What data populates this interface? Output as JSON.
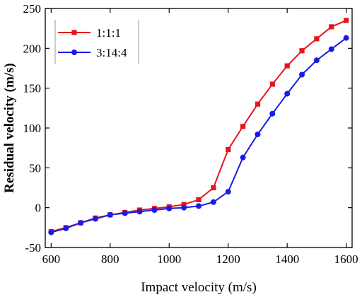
{
  "chart_data": {
    "type": "line",
    "xlabel": "Impact velocity (m/s)",
    "ylabel": "Residual velocity (m/s)",
    "xlim": [
      580,
      1620
    ],
    "ylim": [
      -50,
      250
    ],
    "xticks": [
      600,
      800,
      1000,
      1200,
      1400,
      1600
    ],
    "yticks": [
      -50,
      0,
      50,
      100,
      150,
      200,
      250
    ],
    "x": [
      600,
      650,
      700,
      750,
      800,
      850,
      900,
      950,
      1000,
      1050,
      1100,
      1150,
      1200,
      1250,
      1300,
      1350,
      1400,
      1450,
      1500,
      1550,
      1600
    ],
    "series": [
      {
        "name": "1:1:1",
        "color": "#e8141b",
        "marker": "square",
        "values": [
          -30,
          -25,
          -19,
          -13,
          -9,
          -6,
          -3,
          -1,
          1,
          4,
          10,
          25,
          73,
          102,
          130,
          155,
          178,
          197,
          212,
          227,
          235
        ]
      },
      {
        "name": "3:14:4",
        "color": "#1a1ae6",
        "marker": "circle",
        "values": [
          -31,
          -26,
          -19,
          -14,
          -9,
          -7,
          -5,
          -3,
          -1,
          0,
          2,
          7,
          20,
          63,
          92,
          118,
          143,
          167,
          185,
          199,
          213
        ]
      }
    ],
    "legend_position": "top-left",
    "grid": false
  }
}
